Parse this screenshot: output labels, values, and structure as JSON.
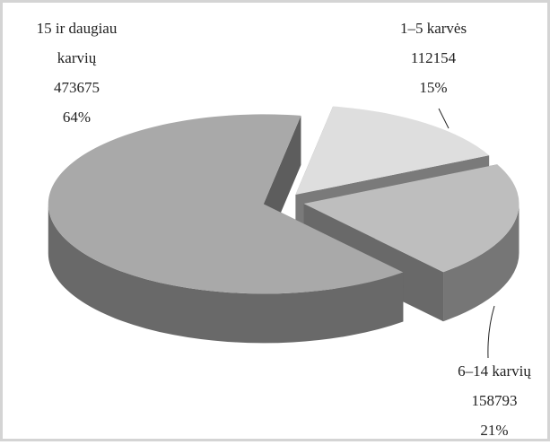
{
  "chart_data": {
    "type": "pie3d",
    "categories": [
      "1–5 karvės",
      "6–14 karvių",
      "15 ir daugiau karvių"
    ],
    "counts": [
      112154,
      158793,
      473675
    ],
    "values": [
      15,
      21,
      64
    ],
    "value_labels": [
      "15%",
      "21%",
      "64%"
    ],
    "colors": [
      "#dedede",
      "#bebebe",
      "#a9a9a9"
    ]
  }
}
